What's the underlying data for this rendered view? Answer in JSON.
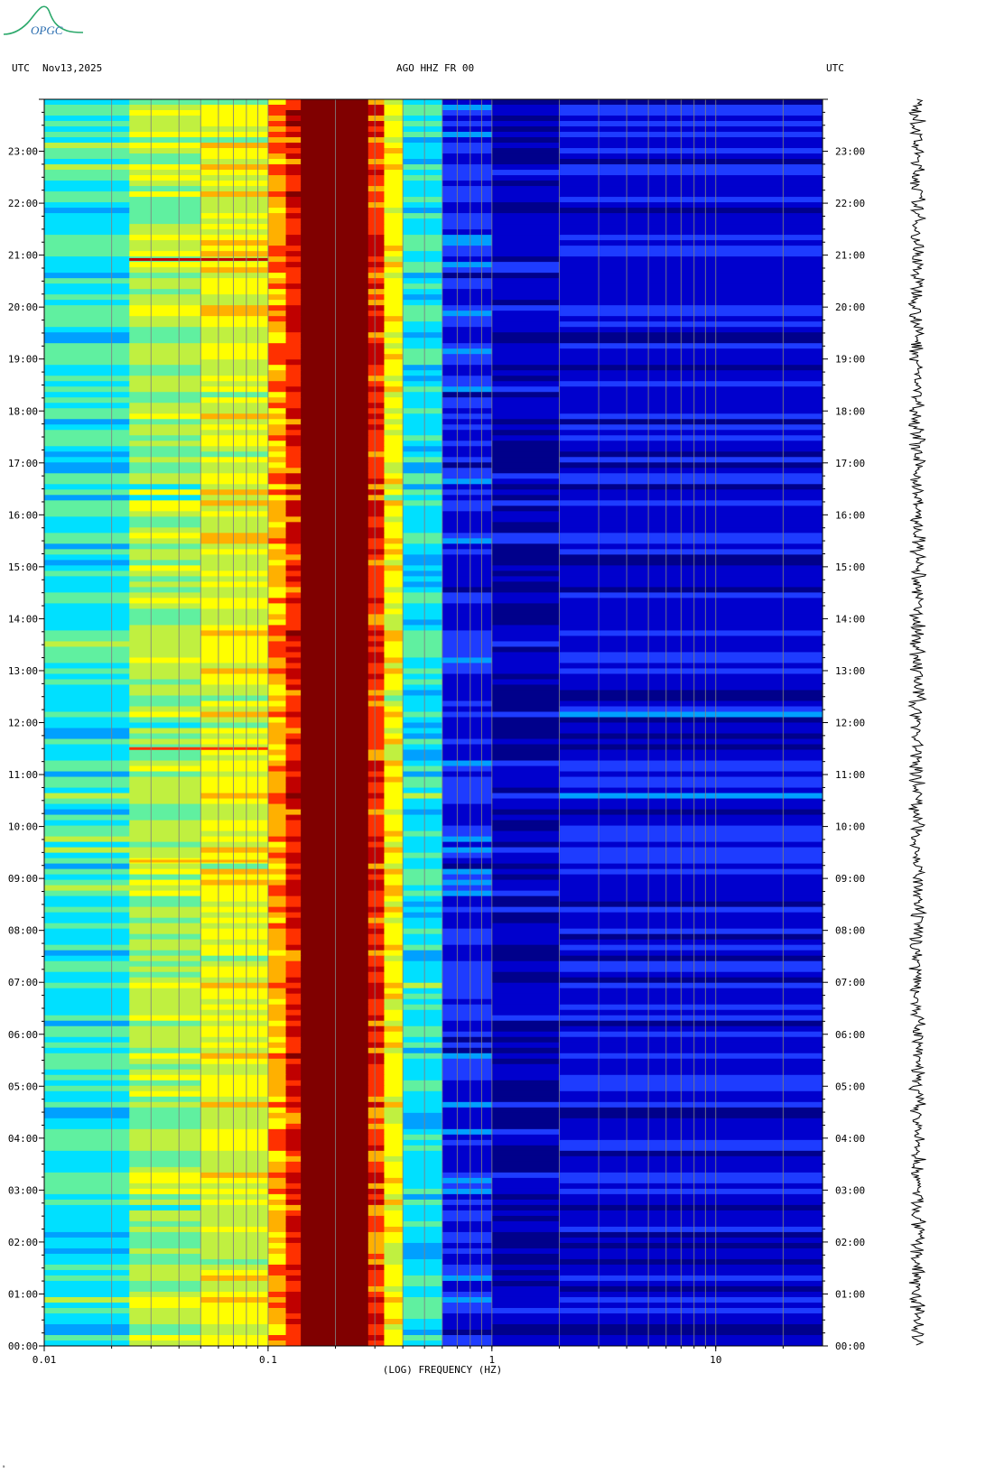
{
  "logo": {
    "text": "OPGC",
    "color": "#2aa86a",
    "icon": "volcano-logo"
  },
  "header": {
    "left_tz": "UTC",
    "date": "Nov13,2025",
    "station": "AGO HHZ FR 00",
    "right_tz": "UTC"
  },
  "corner_mark": "ᵃ",
  "chart_data": {
    "type": "heatmap",
    "title": "AGO HHZ FR 00",
    "xlabel": "(LOG) FREQUENCY (HZ)",
    "xscale": "log",
    "xlim": [
      0.01,
      30
    ],
    "x_ticks": [
      {
        "value": 0.01,
        "label": "0.01"
      },
      {
        "value": 0.1,
        "label": "0.1"
      },
      {
        "value": 1,
        "label": "1"
      },
      {
        "value": 10,
        "label": "10"
      }
    ],
    "ylabel": "UTC",
    "ylim": [
      "00:00",
      "24:00"
    ],
    "y_ticks_left": [
      "00:00",
      "01:00",
      "02:00",
      "03:00",
      "04:00",
      "05:00",
      "06:00",
      "07:00",
      "08:00",
      "09:00",
      "10:00",
      "11:00",
      "12:00",
      "13:00",
      "14:00",
      "15:00",
      "16:00",
      "17:00",
      "18:00",
      "19:00",
      "20:00",
      "21:00",
      "22:00",
      "23:00"
    ],
    "y_ticks_right": [
      "00:00",
      "01:00",
      "02:00",
      "03:00",
      "04:00",
      "05:00",
      "06:00",
      "07:00",
      "08:00",
      "09:00",
      "10:00",
      "11:00",
      "12:00",
      "13:00",
      "14:00",
      "15:00",
      "16:00",
      "17:00",
      "18:00",
      "19:00",
      "20:00",
      "21:00",
      "22:00",
      "23:00"
    ],
    "gridlines_hz": [
      0.02,
      0.03,
      0.04,
      0.05,
      0.06,
      0.07,
      0.08,
      0.09,
      0.1,
      0.2,
      0.3,
      0.4,
      0.5,
      0.6,
      0.7,
      0.8,
      0.9,
      1,
      2,
      3,
      4,
      5,
      6,
      7,
      8,
      9,
      10,
      20
    ],
    "colormap": [
      "#00008b",
      "#0000cd",
      "#1e3cff",
      "#00a0ff",
      "#00e0ff",
      "#60f0a0",
      "#c0f040",
      "#ffff00",
      "#ffb000",
      "#ff3000",
      "#c00000",
      "#800000"
    ],
    "spectral_bands": [
      {
        "from_hz": 0.01,
        "to_hz": 0.024,
        "level": 0.4
      },
      {
        "from_hz": 0.024,
        "to_hz": 0.05,
        "level": 0.52
      },
      {
        "from_hz": 0.05,
        "to_hz": 0.1,
        "level": 0.6
      },
      {
        "from_hz": 0.1,
        "to_hz": 0.12,
        "level": 0.72
      },
      {
        "from_hz": 0.12,
        "to_hz": 0.14,
        "level": 0.85
      },
      {
        "from_hz": 0.14,
        "to_hz": 0.28,
        "level": 1.0
      },
      {
        "from_hz": 0.28,
        "to_hz": 0.33,
        "level": 0.82
      },
      {
        "from_hz": 0.33,
        "to_hz": 0.4,
        "level": 0.62
      },
      {
        "from_hz": 0.4,
        "to_hz": 0.6,
        "level": 0.38
      },
      {
        "from_hz": 0.6,
        "to_hz": 1,
        "level": 0.14
      },
      {
        "from_hz": 1,
        "to_hz": 2,
        "level": 0.05
      },
      {
        "from_hz": 2,
        "to_hz": 30,
        "level": 0.1
      }
    ],
    "events": [
      {
        "time_utc": "20:55",
        "from_hz": 0.024,
        "to_hz": 0.1,
        "level": 0.92
      },
      {
        "time_utc": "11:30",
        "from_hz": 0.024,
        "to_hz": 0.1,
        "level": 0.8
      },
      {
        "time_utc": "09:20",
        "from_hz": 0.024,
        "to_hz": 0.1,
        "level": 0.7
      }
    ],
    "trace": {
      "side": "right",
      "color": "#000000"
    }
  }
}
